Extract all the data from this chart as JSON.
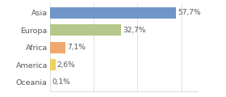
{
  "categories": [
    "Asia",
    "Europa",
    "Africa",
    "America",
    "Oceania"
  ],
  "values": [
    57.7,
    32.7,
    7.1,
    2.6,
    0.1
  ],
  "labels": [
    "57,7%",
    "32,7%",
    "7,1%",
    "2,6%",
    "0,1%"
  ],
  "bar_colors": [
    "#7096c8",
    "#b5c78a",
    "#f0a86e",
    "#f0d060",
    "#d0d0d0"
  ],
  "background_color": "#ffffff",
  "text_color": "#555555",
  "xlim": [
    0,
    68
  ]
}
